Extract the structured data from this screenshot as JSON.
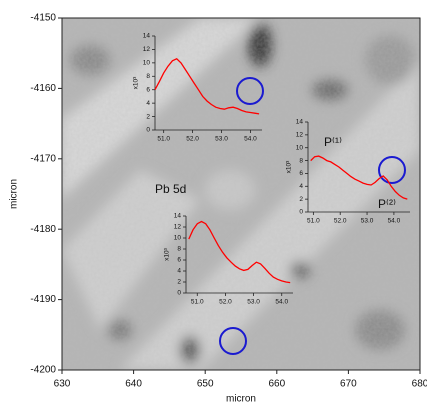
{
  "chart_data": [
    {
      "type": "image",
      "xlabel": "micron",
      "ylabel": "micron",
      "xlim": [
        630,
        680
      ],
      "ylim": [
        -4200,
        -4150
      ],
      "xticks": [
        630,
        640,
        650,
        660,
        670,
        680
      ],
      "yticks": [
        -4150,
        -4160,
        -4170,
        -4180,
        -4190,
        -4200
      ],
      "annotations": [
        {
          "text": "Pb 5d",
          "color": "#ff0000"
        }
      ]
    },
    {
      "type": "line",
      "ylabel": "x10³",
      "x": [
        50.7,
        50.85,
        51.0,
        51.15,
        51.3,
        51.45,
        51.6,
        51.75,
        51.9,
        52.05,
        52.2,
        52.35,
        52.5,
        52.65,
        52.8,
        52.95,
        53.1,
        53.25,
        53.4,
        53.55,
        53.7,
        53.85,
        54.0,
        54.15,
        54.3
      ],
      "series": [
        {
          "color": "#ff0000",
          "values": [
            6.0,
            7.2,
            8.5,
            9.5,
            10.3,
            10.6,
            10.0,
            9.0,
            8.0,
            7.0,
            6.0,
            5.0,
            4.3,
            3.8,
            3.4,
            3.2,
            3.1,
            3.3,
            3.4,
            3.2,
            2.9,
            2.7,
            2.6,
            2.5,
            2.4
          ]
        }
      ],
      "xlim": [
        50.7,
        54.4
      ],
      "xticks": [
        {
          "value": 51,
          "label": "51.0"
        },
        {
          "value": 52,
          "label": "52.0"
        },
        {
          "value": 53,
          "label": "53.0"
        },
        {
          "value": 54,
          "label": "54.0"
        }
      ],
      "ylim": [
        0,
        14
      ],
      "yticks": [
        0,
        2,
        4,
        6,
        8,
        10,
        12,
        14
      ]
    },
    {
      "type": "line",
      "ylabel": "x10³",
      "x": [
        50.9,
        51.05,
        51.2,
        51.35,
        51.5,
        51.65,
        51.8,
        51.95,
        52.1,
        52.25,
        52.4,
        52.55,
        52.7,
        52.85,
        53.0,
        53.15,
        53.3,
        53.45,
        53.6,
        53.75,
        53.9,
        54.05,
        54.2,
        54.35,
        54.5
      ],
      "series": [
        {
          "color": "#ff0000",
          "values": [
            8.0,
            8.6,
            8.7,
            8.4,
            8.0,
            7.8,
            7.4,
            7.0,
            6.5,
            6.0,
            5.5,
            5.1,
            4.8,
            4.5,
            4.3,
            4.2,
            4.6,
            5.2,
            5.6,
            5.0,
            4.0,
            3.2,
            2.6,
            2.2,
            2.0
          ]
        }
      ],
      "xlim": [
        50.8,
        54.6
      ],
      "xticks": [
        {
          "value": 51,
          "label": "51.0"
        },
        {
          "value": 52,
          "label": "52.0"
        },
        {
          "value": 53,
          "label": "53.0"
        },
        {
          "value": 54,
          "label": "54.0"
        }
      ],
      "ylim": [
        0,
        14
      ],
      "yticks": [
        0,
        2,
        4,
        6,
        8,
        10,
        12,
        14
      ],
      "annotations": [
        {
          "text": "P⁽¹⁾",
          "color": "#22bb22"
        },
        {
          "text": "P⁽²⁾",
          "color": "#22bb22"
        }
      ]
    },
    {
      "type": "line",
      "ylabel": "x10³",
      "x": [
        50.7,
        50.85,
        51.0,
        51.15,
        51.3,
        51.45,
        51.6,
        51.75,
        51.9,
        52.05,
        52.2,
        52.35,
        52.5,
        52.65,
        52.8,
        52.95,
        53.1,
        53.25,
        53.4,
        53.55,
        53.7,
        53.85,
        54.0,
        54.15,
        54.3
      ],
      "series": [
        {
          "color": "#ff0000",
          "values": [
            9.8,
            11.5,
            12.6,
            13.0,
            12.6,
            11.5,
            10.0,
            8.6,
            7.4,
            6.4,
            5.6,
            4.9,
            4.4,
            4.1,
            4.3,
            5.0,
            5.6,
            5.3,
            4.5,
            3.6,
            2.9,
            2.5,
            2.2,
            2.0,
            1.9
          ]
        }
      ],
      "xlim": [
        50.6,
        54.4
      ],
      "xticks": [
        {
          "value": 51,
          "label": "51.0"
        },
        {
          "value": 52,
          "label": "52.0"
        },
        {
          "value": 53,
          "label": "53.0"
        },
        {
          "value": 54,
          "label": "54.0"
        }
      ],
      "ylim": [
        0,
        14
      ],
      "yticks": [
        0,
        2,
        4,
        6,
        8,
        10,
        12,
        14
      ]
    }
  ]
}
